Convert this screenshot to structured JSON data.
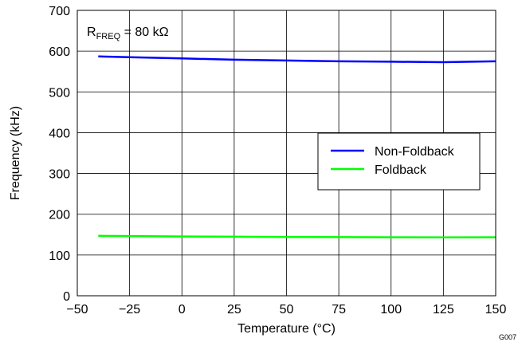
{
  "chart_data": {
    "type": "line",
    "xlabel": "Temperature (°C)",
    "ylabel": "Frequency (kHz)",
    "xlim": [
      -50,
      150
    ],
    "ylim": [
      0,
      700
    ],
    "xticks": [
      -50,
      -25,
      0,
      25,
      50,
      75,
      100,
      125,
      150
    ],
    "xtick_labels": [
      "−50",
      "−25",
      "0",
      "25",
      "50",
      "75",
      "100",
      "125",
      "150"
    ],
    "yticks": [
      0,
      100,
      200,
      300,
      400,
      500,
      600,
      700
    ],
    "ytick_labels": [
      "0",
      "100",
      "200",
      "300",
      "400",
      "500",
      "600",
      "700"
    ],
    "grid": true,
    "legend_position": "right",
    "annotation": {
      "main": "R",
      "sub": "FREQ",
      "rest": " = 80 kΩ"
    },
    "figure_id": "G007",
    "series": [
      {
        "name": "Non-Foldback",
        "color": "#0000ff",
        "x": [
          -40,
          -25,
          0,
          25,
          50,
          75,
          100,
          125,
          150
        ],
        "y": [
          587,
          585,
          582,
          579,
          577,
          575,
          574,
          573,
          575
        ]
      },
      {
        "name": "Foldback",
        "color": "#00ff00",
        "x": [
          -40,
          -25,
          0,
          25,
          50,
          75,
          100,
          125,
          150
        ],
        "y": [
          147,
          146.5,
          145.5,
          144.8,
          144.3,
          144,
          143.6,
          143.3,
          143.5
        ]
      }
    ]
  }
}
